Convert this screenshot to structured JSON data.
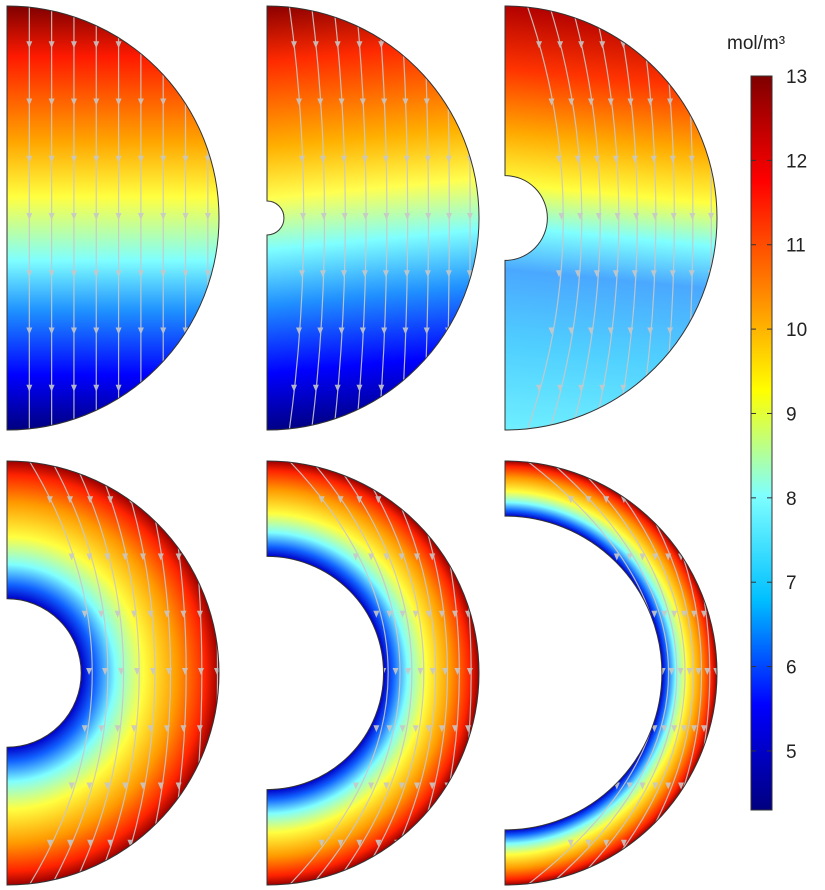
{
  "colorbar": {
    "unit_label": "mol/m³",
    "min": 4.3,
    "max": 13,
    "ticks": [
      "13",
      "12",
      "11",
      "10",
      "9",
      "8",
      "7",
      "6",
      "5"
    ],
    "tick_values": [
      13,
      12,
      11,
      10,
      9,
      8,
      7,
      6,
      5
    ],
    "colormap": [
      "#00007f",
      "#0000ff",
      "#00bfff",
      "#7fffff",
      "#ffff00",
      "#ff7f00",
      "#ff0000",
      "#7f0000"
    ]
  },
  "panels": [
    {
      "name": "inner-radius-0",
      "inner_radius_ratio": 0.0
    },
    {
      "name": "inner-radius-small",
      "inner_radius_ratio": 0.08
    },
    {
      "name": "inner-radius-medium",
      "inner_radius_ratio": 0.2
    },
    {
      "name": "inner-radius-large",
      "inner_radius_ratio": 0.35
    },
    {
      "name": "inner-radius-xlarge",
      "inner_radius_ratio": 0.55
    },
    {
      "name": "inner-radius-xxlarge",
      "inner_radius_ratio": 0.74
    }
  ],
  "colors": {
    "streamline": "#c8c8c8",
    "outline": "#333333"
  }
}
